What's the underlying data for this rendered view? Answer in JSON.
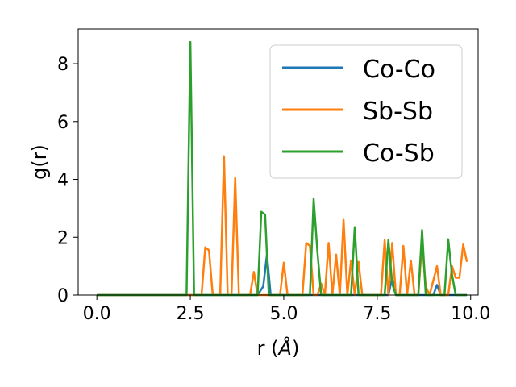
{
  "chart_data": {
    "type": "line",
    "xlabel": "r (",
    "xlabel_unit": "Å",
    "xlabel_close": ")",
    "ylabel": "g(r)",
    "xlim": [
      -0.5,
      10.2
    ],
    "ylim": [
      0,
      9.2
    ],
    "xticks": [
      0.0,
      2.5,
      5.0,
      7.5,
      10.0
    ],
    "xtick_labels": [
      "0.0",
      "2.5",
      "5.0",
      "7.5",
      "10.0"
    ],
    "yticks": [
      0,
      2,
      4,
      6,
      8
    ],
    "ytick_labels": [
      "0",
      "2",
      "4",
      "6",
      "8"
    ],
    "grid": false,
    "legend_position": "top-right",
    "series": [
      {
        "name": "Co-Co",
        "color": "#1f77b4",
        "points": [
          [
            0,
            0
          ],
          [
            4.3,
            0
          ],
          [
            4.45,
            0.3
          ],
          [
            4.55,
            1.4
          ],
          [
            4.65,
            0
          ],
          [
            7.8,
            0
          ],
          [
            7.9,
            0.6
          ],
          [
            8.0,
            0
          ],
          [
            9.0,
            0
          ],
          [
            9.1,
            0.35
          ],
          [
            9.2,
            0
          ],
          [
            9.9,
            0
          ]
        ]
      },
      {
        "name": "Sb-Sb",
        "color": "#ff7f0e",
        "points": [
          [
            0,
            0
          ],
          [
            2.8,
            0
          ],
          [
            2.9,
            1.65
          ],
          [
            3.0,
            1.55
          ],
          [
            3.1,
            0
          ],
          [
            3.3,
            0
          ],
          [
            3.4,
            4.8
          ],
          [
            3.5,
            0
          ],
          [
            3.6,
            0
          ],
          [
            3.7,
            4.05
          ],
          [
            3.8,
            0
          ],
          [
            4.1,
            0
          ],
          [
            4.2,
            0.8
          ],
          [
            4.3,
            0
          ],
          [
            4.9,
            0
          ],
          [
            5.0,
            1.12
          ],
          [
            5.1,
            0
          ],
          [
            5.5,
            0
          ],
          [
            5.6,
            1.8
          ],
          [
            5.7,
            1.7
          ],
          [
            5.8,
            0
          ],
          [
            5.9,
            0
          ],
          [
            6.0,
            0.4
          ],
          [
            6.1,
            0
          ],
          [
            6.2,
            1.8
          ],
          [
            6.3,
            0
          ],
          [
            6.4,
            1.4
          ],
          [
            6.5,
            0
          ],
          [
            6.6,
            2.6
          ],
          [
            6.7,
            0
          ],
          [
            6.8,
            1.2
          ],
          [
            6.9,
            0
          ],
          [
            7.0,
            1.15
          ],
          [
            7.1,
            0
          ],
          [
            7.6,
            0
          ],
          [
            7.7,
            1.9
          ],
          [
            7.8,
            0
          ],
          [
            7.9,
            1.8
          ],
          [
            8.0,
            0
          ],
          [
            8.1,
            0
          ],
          [
            8.2,
            1.7
          ],
          [
            8.3,
            0
          ],
          [
            8.4,
            1.2
          ],
          [
            8.5,
            0
          ],
          [
            8.6,
            0
          ],
          [
            8.7,
            1.8
          ],
          [
            8.8,
            0.3
          ],
          [
            8.9,
            0
          ],
          [
            9.0,
            0.5
          ],
          [
            9.1,
            1.0
          ],
          [
            9.2,
            0
          ],
          [
            9.4,
            0
          ],
          [
            9.5,
            1.0
          ],
          [
            9.6,
            0.6
          ],
          [
            9.7,
            0.6
          ],
          [
            9.8,
            1.75
          ],
          [
            9.9,
            1.15
          ]
        ]
      },
      {
        "name": "Co-Sb",
        "color": "#2ca02c",
        "points": [
          [
            0,
            0
          ],
          [
            2.4,
            0
          ],
          [
            2.5,
            8.75
          ],
          [
            2.6,
            0
          ],
          [
            4.3,
            0
          ],
          [
            4.4,
            2.88
          ],
          [
            4.5,
            2.78
          ],
          [
            4.6,
            0
          ],
          [
            5.7,
            0
          ],
          [
            5.8,
            3.33
          ],
          [
            5.9,
            1.5
          ],
          [
            6.0,
            0
          ],
          [
            6.8,
            0
          ],
          [
            6.9,
            2.35
          ],
          [
            7.0,
            0
          ],
          [
            7.7,
            0
          ],
          [
            7.8,
            1.9
          ],
          [
            7.9,
            0.4
          ],
          [
            8.0,
            0
          ],
          [
            8.6,
            0
          ],
          [
            8.7,
            2.25
          ],
          [
            8.8,
            0
          ],
          [
            9.3,
            0
          ],
          [
            9.4,
            1.93
          ],
          [
            9.5,
            0.7
          ],
          [
            9.6,
            0
          ],
          [
            9.9,
            0
          ]
        ]
      }
    ]
  }
}
